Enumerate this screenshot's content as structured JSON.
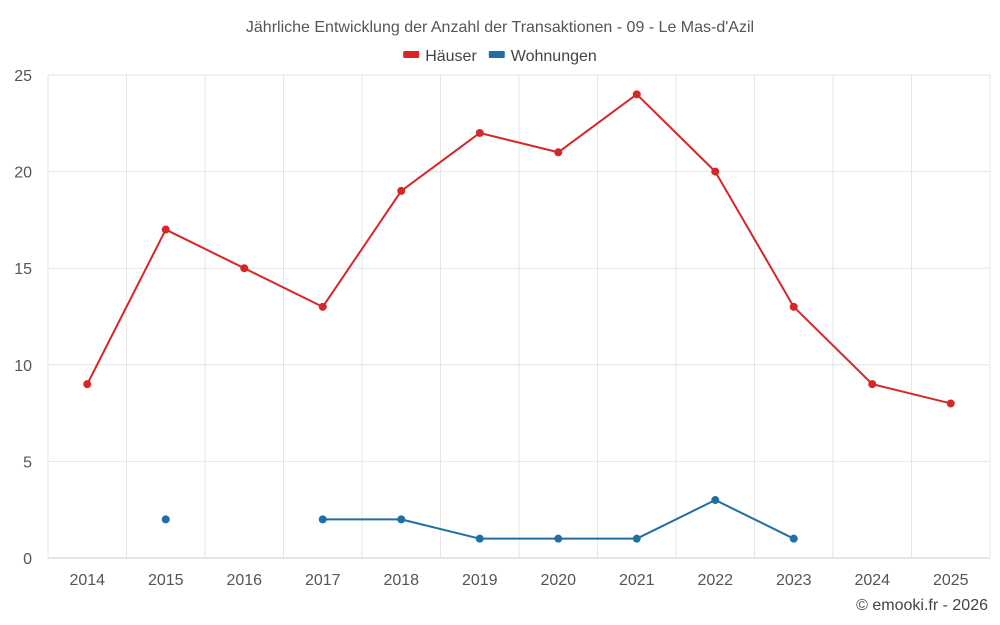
{
  "chart_data": {
    "type": "line",
    "title": "Jährliche Entwicklung der Anzahl der Transaktionen - 09 - Le Mas-d'Azil",
    "categories": [
      "2014",
      "2015",
      "2016",
      "2017",
      "2018",
      "2019",
      "2020",
      "2021",
      "2022",
      "2023",
      "2024",
      "2025"
    ],
    "ylim": [
      0,
      25
    ],
    "yticks": [
      0,
      5,
      10,
      15,
      20,
      25
    ],
    "grid": true,
    "legend_position": "top-center",
    "series": [
      {
        "name": "Häuser",
        "color": "#d62728",
        "values": [
          9,
          17,
          15,
          13,
          19,
          22,
          21,
          24,
          20,
          13,
          9,
          8
        ]
      },
      {
        "name": "Wohnungen",
        "color": "#1f6fa5",
        "values": [
          null,
          2,
          null,
          2,
          2,
          1,
          1,
          1,
          3,
          1,
          null,
          null
        ]
      }
    ],
    "credit": "© emooki.fr - 2026"
  }
}
